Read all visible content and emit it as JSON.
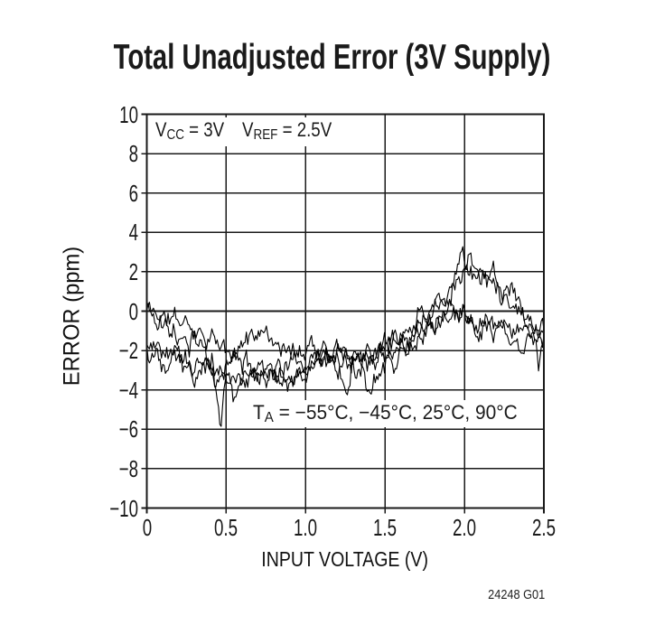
{
  "title": "Total Unadjusted Error (3V Supply)",
  "footer_code": "24248 G01",
  "annotations": {
    "vcc": {
      "base": "V",
      "sub": "CC",
      "rest": " = 3V"
    },
    "vref": {
      "base": "V",
      "sub": "REF",
      "rest": " = 2.5V"
    },
    "ta": {
      "base": "T",
      "sub": "A",
      "rest": " = −55°C, −45°C, 25°C, 90°C"
    }
  },
  "colors": {
    "ink": "#1a1a1a",
    "trace": "#000000",
    "background": "#ffffff"
  },
  "chart_data": {
    "type": "line",
    "title": "Total Unadjusted Error (3V Supply)",
    "xlabel": "INPUT VOLTAGE (V)",
    "ylabel": "ERROR (ppm)",
    "xlim": [
      0,
      2.5
    ],
    "ylim": [
      -10,
      10
    ],
    "x_ticks": [
      0,
      0.5,
      1.0,
      1.5,
      2.0,
      2.5
    ],
    "x_tick_labels": [
      "0",
      "0.5",
      "1.0",
      "1.5",
      "2.0",
      "2.5"
    ],
    "y_ticks": [
      10,
      8,
      6,
      4,
      2,
      0,
      -2,
      -4,
      -6,
      -8,
      -10
    ],
    "y_tick_labels": [
      "10",
      "8",
      "6",
      "4",
      "2",
      "0",
      "−2",
      "−4",
      "−6",
      "−8",
      "−10"
    ],
    "grid": true,
    "legend": "none",
    "conditions": [
      "VCC = 3V",
      "VREF = 2.5V",
      "TA = −55°C, −45°C, 25°C, 90°C"
    ],
    "series": [
      {
        "name": "trace-1",
        "noise_ppm": 0.35,
        "keypoints": [
          [
            0,
            0.2
          ],
          [
            0.1,
            -0.3
          ],
          [
            0.25,
            -0.6
          ],
          [
            0.4,
            -1.2
          ],
          [
            0.47,
            -2.0
          ],
          [
            0.6,
            -2.6
          ],
          [
            0.8,
            -2.9
          ],
          [
            1.0,
            -2.3
          ],
          [
            1.2,
            -2.1
          ],
          [
            1.35,
            -2.2
          ],
          [
            1.5,
            -1.9
          ],
          [
            1.65,
            -1.0
          ],
          [
            1.8,
            0.3
          ],
          [
            1.9,
            1.4
          ],
          [
            2.0,
            2.1
          ],
          [
            2.1,
            1.9
          ],
          [
            2.2,
            1.4
          ],
          [
            2.3,
            0.6
          ],
          [
            2.4,
            -0.2
          ],
          [
            2.45,
            -0.6
          ],
          [
            2.5,
            -1.0
          ]
        ]
      },
      {
        "name": "trace-2",
        "noise_ppm": 0.4,
        "keypoints": [
          [
            0,
            0.1
          ],
          [
            0.15,
            -0.7
          ],
          [
            0.3,
            -1.5
          ],
          [
            0.42,
            -2.6
          ],
          [
            0.465,
            -5.6
          ],
          [
            0.5,
            -3.4
          ],
          [
            0.55,
            -4.0
          ],
          [
            0.65,
            -3.4
          ],
          [
            0.8,
            -3.5
          ],
          [
            0.95,
            -3.1
          ],
          [
            1.1,
            -2.5
          ],
          [
            1.25,
            -2.2
          ],
          [
            1.4,
            -2.4
          ],
          [
            1.55,
            -1.6
          ],
          [
            1.7,
            -0.6
          ],
          [
            1.85,
            0.9
          ],
          [
            1.95,
            1.9
          ],
          [
            2.05,
            2.2
          ],
          [
            2.15,
            1.7
          ],
          [
            2.3,
            0.9
          ],
          [
            2.4,
            0.1
          ],
          [
            2.44,
            -1.3
          ],
          [
            2.47,
            -2.8
          ],
          [
            2.5,
            -1.2
          ]
        ]
      },
      {
        "name": "trace-3",
        "noise_ppm": 0.35,
        "keypoints": [
          [
            0,
            -1.7
          ],
          [
            0.2,
            -2.4
          ],
          [
            0.35,
            -2.9
          ],
          [
            0.5,
            -2.7
          ],
          [
            0.62,
            -1.4
          ],
          [
            0.7,
            -1.1
          ],
          [
            0.85,
            -2.0
          ],
          [
            1.0,
            -2.4
          ],
          [
            1.2,
            -2.2
          ],
          [
            1.4,
            -2.1
          ],
          [
            1.6,
            -1.4
          ],
          [
            1.75,
            -0.9
          ],
          [
            1.9,
            -0.4
          ],
          [
            2.0,
            -0.3
          ],
          [
            2.1,
            -0.8
          ],
          [
            2.2,
            -0.6
          ],
          [
            2.3,
            -1.0
          ],
          [
            2.4,
            -0.8
          ],
          [
            2.5,
            -1.1
          ]
        ]
      },
      {
        "name": "trace-4",
        "noise_ppm": 0.4,
        "keypoints": [
          [
            0,
            -2.2
          ],
          [
            0.15,
            -2.9
          ],
          [
            0.3,
            -3.2
          ],
          [
            0.5,
            -3.3
          ],
          [
            0.7,
            -3.4
          ],
          [
            0.9,
            -3.3
          ],
          [
            1.05,
            -2.9
          ],
          [
            1.2,
            -2.3
          ],
          [
            1.25,
            -4.2
          ],
          [
            1.3,
            -2.4
          ],
          [
            1.38,
            -4.0
          ],
          [
            1.45,
            -2.7
          ],
          [
            1.6,
            -2.0
          ],
          [
            1.75,
            -1.1
          ],
          [
            1.9,
            -0.4
          ],
          [
            2.0,
            -0.1
          ],
          [
            2.15,
            -0.9
          ],
          [
            2.3,
            -1.1
          ],
          [
            2.4,
            -1.4
          ],
          [
            2.5,
            -1.8
          ]
        ]
      }
    ]
  }
}
